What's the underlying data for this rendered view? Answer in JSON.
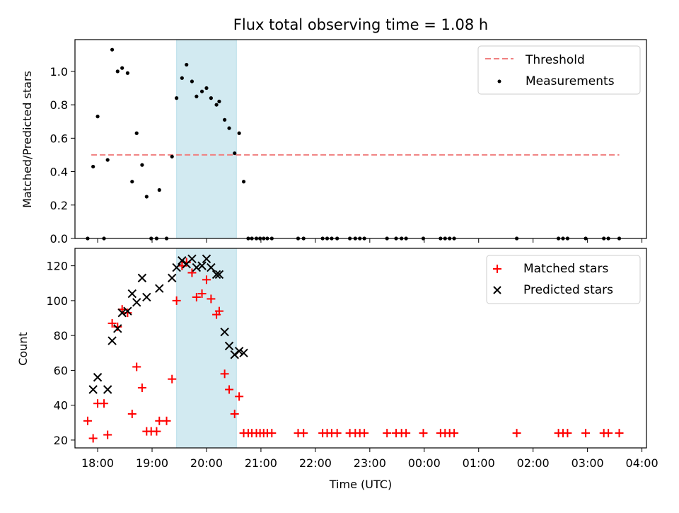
{
  "colors": {
    "threshold": "#f08080",
    "measurements": "#000000",
    "matched": "#ff0000",
    "predicted": "#000000",
    "highlight": "#add8e6"
  },
  "chart_data": [
    {
      "type": "scatter",
      "title": "Flux total observing time = 1.08 h",
      "xlabel": "",
      "ylabel": "Matched/Predicted stars",
      "xlim": [
        "17:35",
        "04:05"
      ],
      "ylim": [
        0,
        1.19
      ],
      "yticks": [
        0.0,
        0.2,
        0.4,
        0.6,
        0.8,
        1.0
      ],
      "ytick_labels": [
        "0.0",
        "0.2",
        "0.4",
        "0.6",
        "0.8",
        "1.0"
      ],
      "highlight_span": [
        "19:27",
        "20:33"
      ],
      "legend": {
        "position": "top-right",
        "entries": [
          "Threshold",
          "Measurements"
        ]
      },
      "threshold": {
        "name": "Threshold",
        "y": 0.5,
        "x_range": [
          "17:53",
          "03:35"
        ]
      },
      "series": [
        {
          "name": "Measurements",
          "marker": "dot",
          "points": [
            [
              "17:49",
              0
            ],
            [
              "17:55",
              0.43
            ],
            [
              "18:00",
              0.73
            ],
            [
              "18:07",
              0
            ],
            [
              "18:11",
              0.47
            ],
            [
              "18:16",
              1.13
            ],
            [
              "18:22",
              1.0
            ],
            [
              "18:27",
              1.02
            ],
            [
              "18:33",
              0.99
            ],
            [
              "18:38",
              0.34
            ],
            [
              "18:43",
              0.63
            ],
            [
              "18:49",
              0.44
            ],
            [
              "18:54",
              0.25
            ],
            [
              "18:59",
              0
            ],
            [
              "19:05",
              0
            ],
            [
              "19:08",
              0.29
            ],
            [
              "19:16",
              0
            ],
            [
              "19:22",
              0.49
            ],
            [
              "19:27",
              0.84
            ],
            [
              "19:33",
              0.96
            ],
            [
              "19:38",
              1.04
            ],
            [
              "19:44",
              0.94
            ],
            [
              "19:49",
              0.85
            ],
            [
              "19:55",
              0.88
            ],
            [
              "20:00",
              0.9
            ],
            [
              "20:05",
              0.84
            ],
            [
              "20:11",
              0.8
            ],
            [
              "20:14",
              0.82
            ],
            [
              "20:20",
              0.71
            ],
            [
              "20:25",
              0.66
            ],
            [
              "20:31",
              0.51
            ],
            [
              "20:36",
              0.63
            ],
            [
              "20:41",
              0.34
            ],
            [
              "20:46",
              0
            ],
            [
              "20:50",
              0
            ],
            [
              "20:55",
              0
            ],
            [
              "20:59",
              0
            ],
            [
              "21:03",
              0
            ],
            [
              "21:07",
              0
            ],
            [
              "21:12",
              0
            ],
            [
              "21:41",
              0
            ],
            [
              "21:47",
              0
            ],
            [
              "22:08",
              0
            ],
            [
              "22:13",
              0
            ],
            [
              "22:18",
              0
            ],
            [
              "22:24",
              0
            ],
            [
              "22:38",
              0
            ],
            [
              "22:44",
              0
            ],
            [
              "22:49",
              0
            ],
            [
              "22:54",
              0
            ],
            [
              "23:19",
              0
            ],
            [
              "23:29",
              0
            ],
            [
              "23:35",
              0
            ],
            [
              "23:40",
              0
            ],
            [
              "23:59",
              0
            ],
            [
              "00:18",
              0
            ],
            [
              "00:23",
              0
            ],
            [
              "00:28",
              0
            ],
            [
              "00:33",
              0
            ],
            [
              "01:42",
              0
            ],
            [
              "02:28",
              0
            ],
            [
              "02:33",
              0
            ],
            [
              "02:38",
              0
            ],
            [
              "02:58",
              0
            ],
            [
              "03:18",
              0
            ],
            [
              "03:23",
              0
            ],
            [
              "03:35",
              0
            ]
          ]
        }
      ]
    },
    {
      "type": "scatter",
      "title": "",
      "xlabel": "Time (UTC)",
      "ylabel": "Count",
      "xlim": [
        "17:35",
        "04:05"
      ],
      "ylim": [
        15.5,
        130
      ],
      "yticks": [
        20,
        40,
        60,
        80,
        100,
        120
      ],
      "ytick_labels": [
        "20",
        "40",
        "60",
        "80",
        "100",
        "120"
      ],
      "xticks": [
        "18:00",
        "19:00",
        "20:00",
        "21:00",
        "22:00",
        "23:00",
        "00:00",
        "01:00",
        "02:00",
        "03:00",
        "04:00"
      ],
      "xtick_labels": [
        "18:00",
        "19:00",
        "20:00",
        "21:00",
        "22:00",
        "23:00",
        "00:00",
        "01:00",
        "02:00",
        "03:00",
        "04:00"
      ],
      "highlight_span": [
        "19:27",
        "20:33"
      ],
      "legend": {
        "position": "top-right",
        "entries": [
          "Matched stars",
          "Predicted stars"
        ]
      },
      "series": [
        {
          "name": "Matched stars",
          "marker": "plus",
          "points": [
            [
              "17:49",
              31
            ],
            [
              "17:55",
              21
            ],
            [
              "18:00",
              41
            ],
            [
              "18:07",
              41
            ],
            [
              "18:11",
              23
            ],
            [
              "18:16",
              87
            ],
            [
              "18:22",
              85
            ],
            [
              "18:27",
              95
            ],
            [
              "18:33",
              93
            ],
            [
              "18:38",
              35
            ],
            [
              "18:43",
              62
            ],
            [
              "18:49",
              50
            ],
            [
              "18:54",
              25
            ],
            [
              "18:59",
              25
            ],
            [
              "19:05",
              25
            ],
            [
              "19:08",
              31
            ],
            [
              "19:16",
              31
            ],
            [
              "19:22",
              55
            ],
            [
              "19:27",
              100
            ],
            [
              "19:33",
              120
            ],
            [
              "19:38",
              122
            ],
            [
              "19:44",
              116
            ],
            [
              "19:49",
              102
            ],
            [
              "19:55",
              104
            ],
            [
              "20:00",
              112
            ],
            [
              "20:05",
              101
            ],
            [
              "20:11",
              92
            ],
            [
              "20:14",
              94
            ],
            [
              "20:20",
              58
            ],
            [
              "20:25",
              49
            ],
            [
              "20:31",
              35
            ],
            [
              "20:36",
              45
            ],
            [
              "20:41",
              24
            ],
            [
              "20:46",
              24
            ],
            [
              "20:50",
              24
            ],
            [
              "20:55",
              24
            ],
            [
              "20:59",
              24
            ],
            [
              "21:03",
              24
            ],
            [
              "21:07",
              24
            ],
            [
              "21:12",
              24
            ],
            [
              "21:41",
              24
            ],
            [
              "21:47",
              24
            ],
            [
              "22:08",
              24
            ],
            [
              "22:13",
              24
            ],
            [
              "22:18",
              24
            ],
            [
              "22:24",
              24
            ],
            [
              "22:38",
              24
            ],
            [
              "22:44",
              24
            ],
            [
              "22:49",
              24
            ],
            [
              "22:54",
              24
            ],
            [
              "23:19",
              24
            ],
            [
              "23:29",
              24
            ],
            [
              "23:35",
              24
            ],
            [
              "23:40",
              24
            ],
            [
              "23:59",
              24
            ],
            [
              "00:18",
              24
            ],
            [
              "00:23",
              24
            ],
            [
              "00:28",
              24
            ],
            [
              "00:33",
              24
            ],
            [
              "01:42",
              24
            ],
            [
              "02:28",
              24
            ],
            [
              "02:33",
              24
            ],
            [
              "02:38",
              24
            ],
            [
              "02:58",
              24
            ],
            [
              "03:18",
              24
            ],
            [
              "03:23",
              24
            ],
            [
              "03:35",
              24
            ]
          ]
        },
        {
          "name": "Predicted stars",
          "marker": "x",
          "points": [
            [
              "17:55",
              49
            ],
            [
              "18:00",
              56
            ],
            [
              "18:11",
              49
            ],
            [
              "18:16",
              77
            ],
            [
              "18:22",
              84
            ],
            [
              "18:27",
              93
            ],
            [
              "18:33",
              94
            ],
            [
              "18:38",
              104
            ],
            [
              "18:43",
              99
            ],
            [
              "18:49",
              113
            ],
            [
              "18:54",
              102
            ],
            [
              "19:08",
              107
            ],
            [
              "19:22",
              113
            ],
            [
              "19:27",
              119
            ],
            [
              "19:33",
              123
            ],
            [
              "19:38",
              121
            ],
            [
              "19:44",
              124
            ],
            [
              "19:49",
              119
            ],
            [
              "19:55",
              120
            ],
            [
              "20:00",
              124
            ],
            [
              "20:05",
              119
            ],
            [
              "20:11",
              115
            ],
            [
              "20:14",
              115
            ],
            [
              "20:20",
              82
            ],
            [
              "20:25",
              74
            ],
            [
              "20:31",
              69
            ],
            [
              "20:36",
              71
            ],
            [
              "20:41",
              70
            ]
          ]
        }
      ]
    }
  ]
}
